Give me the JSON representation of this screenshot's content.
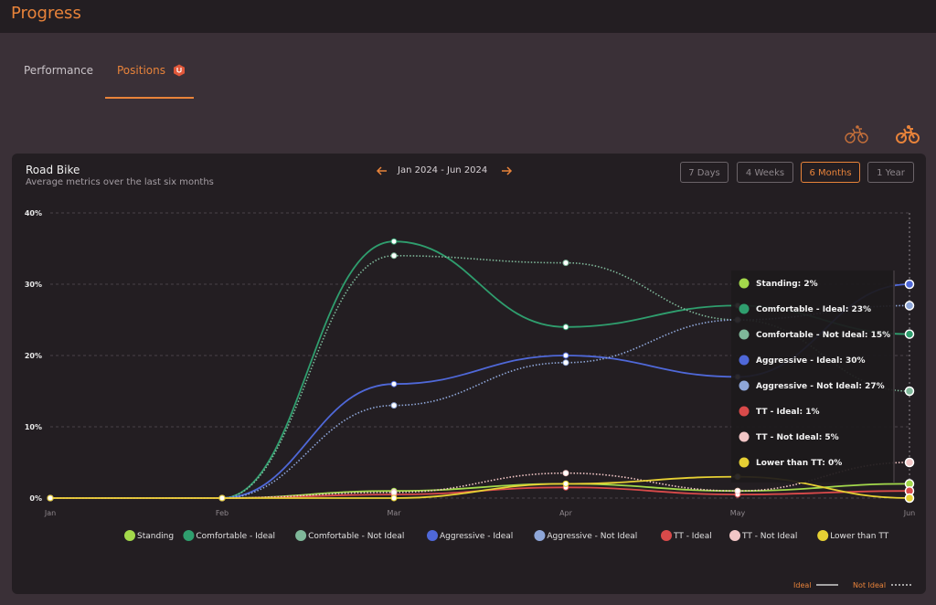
{
  "header": {
    "title": "Progress"
  },
  "tabs": [
    {
      "label": "Performance"
    },
    {
      "label": "Positions"
    }
  ],
  "card": {
    "title": "Road Bike",
    "subtitle": "Average metrics over the last six months",
    "range": "Jan 2024 - Jun 2024",
    "periods": [
      "7 Days",
      "4 Weeks",
      "6 Months",
      "1 Year"
    ],
    "active_period": "6 Months"
  },
  "tooltip": {
    "items": [
      {
        "label": "Standing:",
        "value": "2%"
      },
      {
        "label": "Comfortable - Ideal:",
        "value": "23%"
      },
      {
        "label": "Comfortable - Not Ideal:",
        "value": "15%"
      },
      {
        "label": "Aggressive - Ideal:",
        "value": "30%"
      },
      {
        "label": "Aggressive - Not Ideal:",
        "value": "27%"
      },
      {
        "label": "TT - Ideal:",
        "value": "1%"
      },
      {
        "label": "TT - Not Ideal:",
        "value": "5%"
      },
      {
        "label": "Lower than TT:",
        "value": "0%"
      }
    ]
  },
  "line_style_legend": {
    "ideal": "Ideal",
    "not_ideal": "Not Ideal"
  },
  "icons": {
    "bike_outline": "bike-icon",
    "bike_active": "bike-icon",
    "prev": "arrow-left-icon",
    "next": "arrow-right-icon",
    "badge": "hexagon-badge-icon"
  },
  "colors": {
    "accent": "#e8833a",
    "background": "#3a3037",
    "card": "#231e22"
  },
  "chart_data": {
    "type": "line",
    "x": [
      "Jan",
      "Feb",
      "Mar",
      "Apr",
      "May",
      "Jun"
    ],
    "ylim": [
      0,
      40
    ],
    "yticks": [
      "0%",
      "10%",
      "20%",
      "30%",
      "40%"
    ],
    "grid": true,
    "legend": "bottom",
    "series": [
      {
        "name": "Standing",
        "color": "#a3d94b",
        "dashed": false,
        "values": [
          0,
          0,
          1,
          2,
          1,
          2
        ]
      },
      {
        "name": "Comfortable - Ideal",
        "color": "#2f9e6e",
        "dashed": false,
        "values": [
          0,
          0,
          36,
          24,
          27,
          23
        ]
      },
      {
        "name": "Comfortable - Not Ideal",
        "color": "#7fb89a",
        "dashed": true,
        "values": [
          0,
          0,
          34,
          33,
          25,
          15
        ]
      },
      {
        "name": "Aggressive - Ideal",
        "color": "#4f68d8",
        "dashed": false,
        "values": [
          0,
          0,
          16,
          20,
          17,
          30
        ]
      },
      {
        "name": "Aggressive - Not Ideal",
        "color": "#8ea6d8",
        "dashed": true,
        "values": [
          0,
          0,
          13,
          19,
          25,
          27
        ]
      },
      {
        "name": "TT - Ideal",
        "color": "#d94a4a",
        "dashed": false,
        "values": [
          0,
          0,
          0.5,
          1.5,
          0.5,
          1
        ]
      },
      {
        "name": "TT - Not Ideal",
        "color": "#f2c6c6",
        "dashed": true,
        "values": [
          0,
          0,
          0.8,
          3.5,
          1,
          5
        ]
      },
      {
        "name": "Lower than TT",
        "color": "#e6d034",
        "dashed": false,
        "values": [
          0,
          0,
          0,
          2,
          3,
          0
        ]
      }
    ]
  }
}
